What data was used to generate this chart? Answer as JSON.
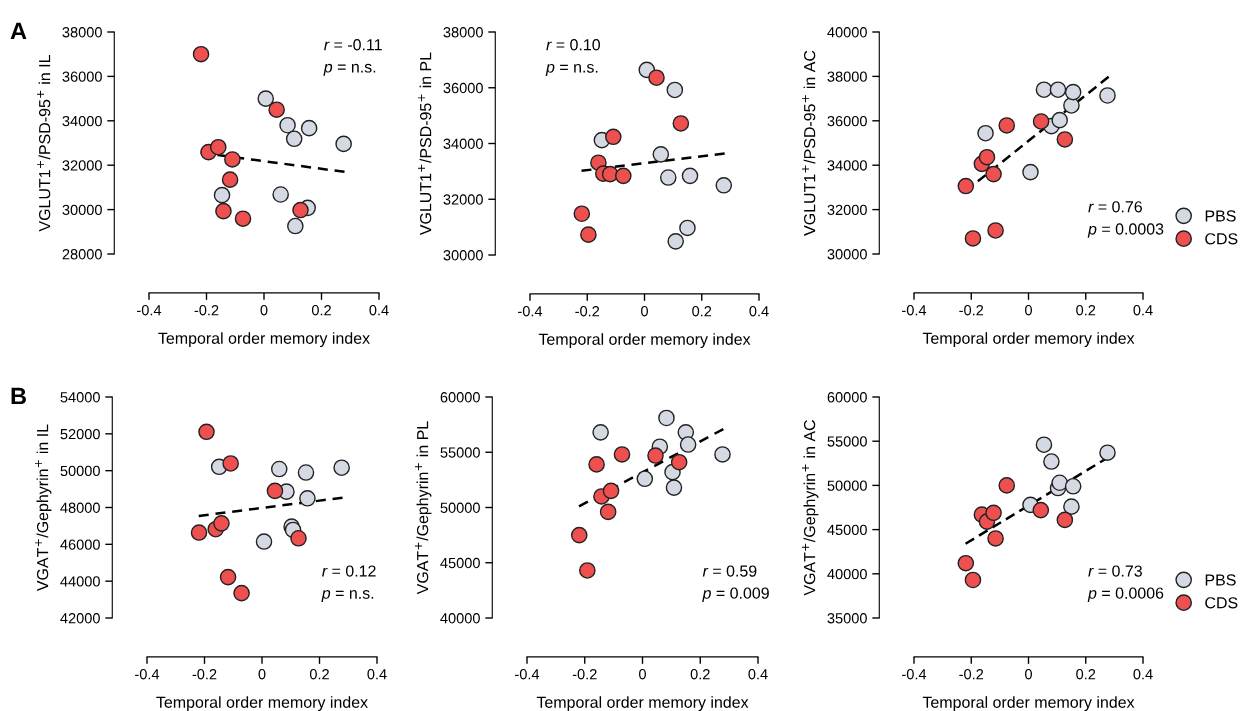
{
  "chart_data": [
    {
      "type": "scatter",
      "title": "A",
      "ylabel": "VGLUT1$^{+}$/PSD-95$^{+}$ in IL",
      "xlabel": "Temporal order memory index",
      "xlim": [
        -0.4,
        0.4
      ],
      "xticks": [
        -0.4,
        -0.2,
        0,
        0.2,
        0.4
      ],
      "ylim": [
        28000,
        38000
      ],
      "yticks": [
        28000,
        30000,
        32000,
        34000,
        36000,
        38000
      ],
      "grid": false,
      "legend": false,
      "marker": "circle",
      "annotations": [
        "r = -0.11",
        "p = n.s."
      ],
      "series": [
        {
          "color": "#d5d9e3",
          "x": [
            -0.146,
            0.006,
            0.058,
            0.082,
            0.105,
            0.109,
            0.152,
            0.157,
            0.277
          ],
          "values": [
            30650,
            35000,
            30680,
            33800,
            33190,
            29260,
            30080,
            33670,
            32960
          ]
        },
        {
          "color": "#ee5050",
          "x": [
            -0.219,
            -0.193,
            -0.159,
            -0.141,
            -0.118,
            -0.11,
            -0.073,
            0.044,
            0.127
          ],
          "values": [
            37000,
            32590,
            32810,
            29930,
            31350,
            32260,
            29590,
            34500,
            29980
          ]
        },
        {
          "type": "line",
          "color": "#000000",
          "marker": "none",
          "line_style": "dashed",
          "x": [
            -0.22,
            0.28
          ],
          "values": [
            32560,
            31700
          ]
        }
      ]
    },
    {
      "type": "scatter",
      "ylabel": "VGLUT1$^{+}$/PSD-95$^{+}$ in PL",
      "xlabel": "Temporal order memory index",
      "xlim": [
        -0.4,
        0.4
      ],
      "xticks": [
        -0.4,
        -0.2,
        0,
        0.2,
        0.4
      ],
      "ylim": [
        30000,
        38000
      ],
      "yticks": [
        30000,
        32000,
        34000,
        36000,
        38000
      ],
      "grid": false,
      "legend": false,
      "marker": "circle",
      "annotations": [
        "r = 0.10",
        "p = n.s."
      ],
      "series": [
        {
          "color": "#d5d9e3",
          "x": [
            -0.149,
            0.008,
            0.057,
            0.083,
            0.106,
            0.109,
            0.15,
            0.159,
            0.277
          ],
          "values": [
            34120,
            36640,
            33610,
            32780,
            35920,
            30490,
            30970,
            32840,
            32500
          ]
        },
        {
          "color": "#ee5050",
          "x": [
            -0.219,
            -0.196,
            -0.161,
            -0.144,
            -0.12,
            -0.109,
            -0.074,
            0.042,
            0.127
          ],
          "values": [
            31480,
            30730,
            33310,
            32920,
            32900,
            34240,
            32840,
            36360,
            34720
          ]
        },
        {
          "type": "line",
          "color": "#000000",
          "marker": "none",
          "line_style": "dashed",
          "x": [
            -0.22,
            0.28
          ],
          "values": [
            33020,
            33640
          ]
        }
      ]
    },
    {
      "type": "scatter",
      "ylabel": "VGLUT1$^{+}$/PSD-95$^{+}$ in AC",
      "xlabel": "Temporal order memory index",
      "xlim": [
        -0.4,
        0.4
      ],
      "xticks": [
        -0.4,
        -0.2,
        0,
        0.2,
        0.4
      ],
      "ylim": [
        30000,
        40000
      ],
      "yticks": [
        30000,
        32000,
        34000,
        36000,
        38000,
        40000
      ],
      "grid": false,
      "legend": "bottom right",
      "marker": "circle",
      "annotations": [
        "r = 0.76",
        "p = 0.0003"
      ],
      "series": [
        {
          "name": "PBS",
          "color": "#d5d9e3",
          "x": [
            -0.15,
            0.007,
            0.054,
            0.08,
            0.103,
            0.109,
            0.15,
            0.156,
            0.276
          ],
          "values": [
            35440,
            33690,
            37400,
            35760,
            37400,
            36030,
            36690,
            37290,
            37140
          ]
        },
        {
          "name": "CDS",
          "color": "#ee5050",
          "x": [
            -0.219,
            -0.194,
            -0.163,
            -0.145,
            -0.122,
            -0.115,
            -0.076,
            0.044,
            0.127
          ],
          "values": [
            33060,
            30700,
            34060,
            34360,
            33600,
            31060,
            35790,
            35970,
            35160
          ]
        },
        {
          "type": "line",
          "color": "#000000",
          "marker": "none",
          "line_style": "dashed",
          "x": [
            -0.22,
            0.28
          ],
          "values": [
            32830,
            37980
          ]
        }
      ]
    },
    {
      "type": "scatter",
      "title": "B",
      "ylabel": "VGAT$^{+}$/Gephyrin$^{+}$ in IL",
      "xlabel": "Temporal order memory index",
      "xlim": [
        -0.4,
        0.4
      ],
      "xticks": [
        -0.4,
        -0.2,
        0,
        0.2,
        0.4
      ],
      "ylim": [
        42000,
        54000
      ],
      "yticks": [
        42000,
        44000,
        46000,
        48000,
        50000,
        52000,
        54000
      ],
      "grid": false,
      "legend": false,
      "marker": "circle",
      "annotations": [
        "r = 0.12",
        "p = n.s."
      ],
      "series": [
        {
          "color": "#d5d9e3",
          "x": [
            -0.149,
            0.007,
            0.06,
            0.085,
            0.103,
            0.108,
            0.153,
            0.158,
            0.277
          ],
          "values": [
            50210,
            46150,
            50090,
            48860,
            46960,
            46780,
            49900,
            48500,
            50160
          ]
        },
        {
          "color": "#ee5050",
          "x": [
            -0.219,
            -0.193,
            -0.161,
            -0.141,
            -0.118,
            -0.109,
            -0.071,
            0.045,
            0.127
          ],
          "values": [
            46640,
            52110,
            46820,
            47140,
            44220,
            50390,
            43350,
            48900,
            46330
          ]
        },
        {
          "type": "line",
          "color": "#000000",
          "marker": "none",
          "line_style": "dashed",
          "x": [
            -0.22,
            0.28
          ],
          "values": [
            47540,
            48530
          ]
        }
      ]
    },
    {
      "type": "scatter",
      "ylabel": "VGAT$^{+}$/Gephyrin$^{+}$ in PL",
      "xlabel": "Temporal order memory index",
      "xlim": [
        -0.4,
        0.4
      ],
      "xticks": [
        -0.4,
        -0.2,
        0,
        0.2,
        0.4
      ],
      "ylim": [
        40000,
        60000
      ],
      "yticks": [
        40000,
        45000,
        50000,
        55000,
        60000
      ],
      "grid": false,
      "legend": false,
      "marker": "circle",
      "annotations": [
        "r = 0.59",
        "p = 0.009"
      ],
      "series": [
        {
          "color": "#d5d9e3",
          "x": [
            -0.145,
            0.008,
            0.06,
            0.083,
            0.104,
            0.109,
            0.15,
            0.158,
            0.277
          ],
          "values": [
            56800,
            52600,
            55500,
            58100,
            53200,
            51800,
            56800,
            55700,
            54800
          ]
        },
        {
          "color": "#ee5050",
          "x": [
            -0.219,
            -0.191,
            -0.159,
            -0.142,
            -0.119,
            -0.109,
            -0.071,
            0.045,
            0.127
          ],
          "values": [
            47500,
            44300,
            53900,
            51000,
            49600,
            51500,
            54800,
            54700,
            54100
          ]
        },
        {
          "type": "line",
          "color": "#000000",
          "marker": "none",
          "line_style": "dashed",
          "x": [
            -0.22,
            0.28
          ],
          "values": [
            50100,
            57100
          ]
        }
      ]
    },
    {
      "type": "scatter",
      "ylabel": "VGAT$^{+}$/Gephyrin$^{+}$ in AC",
      "xlabel": "Temporal order memory index",
      "xlim": [
        -0.4,
        0.4
      ],
      "xticks": [
        -0.4,
        -0.2,
        0,
        0.2,
        0.4
      ],
      "ylim": [
        35000,
        60000
      ],
      "yticks": [
        35000,
        40000,
        45000,
        50000,
        55000,
        60000
      ],
      "grid": false,
      "legend": "bottom right",
      "marker": "circle",
      "annotations": [
        "r = 0.73",
        "p = 0.0006"
      ],
      "series": [
        {
          "name": "PBS",
          "color": "#d5d9e3",
          "x": [
            0.007,
            0.054,
            0.08,
            0.103,
            0.109,
            0.15,
            0.156,
            0.276
          ],
          "values": [
            47800,
            54600,
            52700,
            49700,
            50300,
            47600,
            49900,
            53700
          ]
        },
        {
          "name": "CDS",
          "color": "#ee5050",
          "x": [
            -0.219,
            -0.194,
            -0.163,
            -0.145,
            -0.122,
            -0.115,
            -0.076,
            0.043,
            0.127
          ],
          "values": [
            41200,
            39300,
            46700,
            45900,
            46900,
            44000,
            50000,
            47200,
            46100
          ]
        },
        {
          "type": "line",
          "color": "#000000",
          "marker": "none",
          "line_style": "dashed",
          "x": [
            -0.22,
            0.28
          ],
          "values": [
            43400,
            53200
          ]
        }
      ]
    }
  ]
}
